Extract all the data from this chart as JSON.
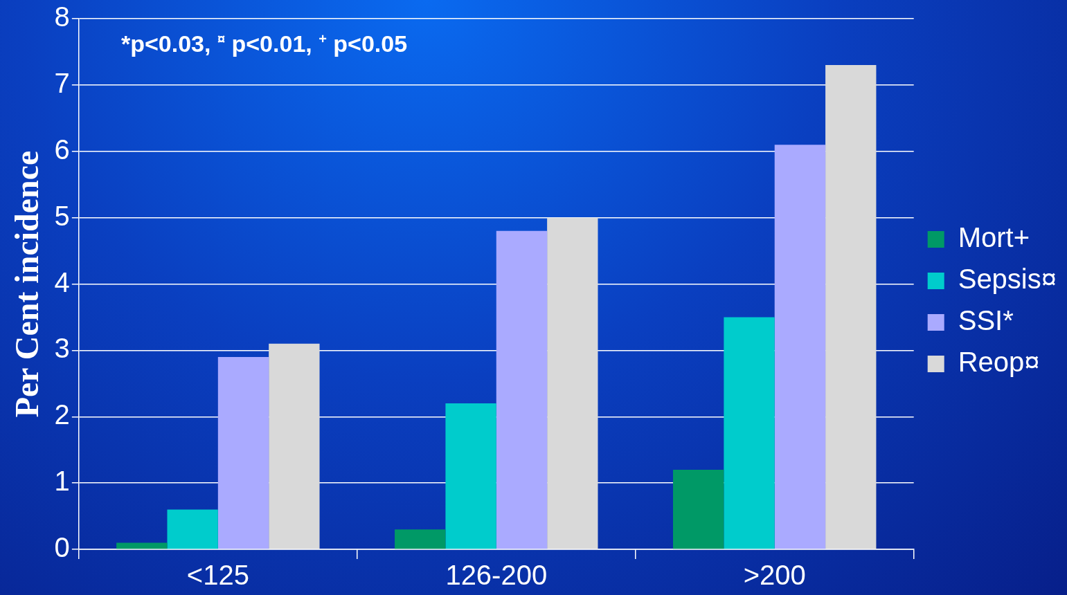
{
  "chart_data": {
    "type": "bar",
    "ylabel": "Per Cent incidence",
    "categories": [
      "<125",
      "126-200",
      ">200"
    ],
    "series": [
      {
        "name": "Mort+",
        "color": "#009966",
        "values": [
          0.1,
          0.3,
          1.2
        ]
      },
      {
        "name": "Sepsis¤",
        "color": "#00cccc",
        "values": [
          0.6,
          2.2,
          3.5
        ]
      },
      {
        "name": "SSI*",
        "color": "#aaaaff",
        "values": [
          2.9,
          4.8,
          6.1
        ]
      },
      {
        "name": "Reop¤",
        "color": "#d9d9d9",
        "values": [
          3.1,
          5.0,
          7.3
        ]
      }
    ],
    "ylim": [
      0,
      8
    ],
    "yticks": [
      0,
      1,
      2,
      3,
      4,
      5,
      6,
      7,
      8
    ],
    "grid": "y",
    "legend": "right",
    "annotations": [
      "*p<0.03, $^{¤}$ p<0.01, $^{+}$ p<0.05"
    ]
  }
}
